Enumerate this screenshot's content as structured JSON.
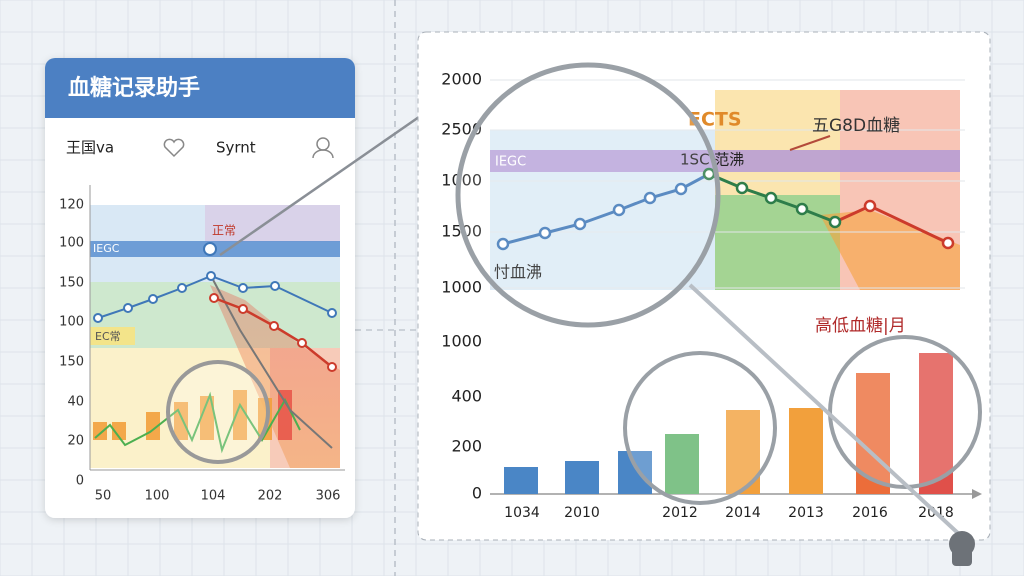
{
  "app_card": {
    "title": "血糖记录助手",
    "tabs": [
      "王国va",
      "Syrnt"
    ],
    "chart": {
      "y_labels": [
        "120",
        "100",
        "150",
        "100",
        "150",
        "40",
        "20",
        "0"
      ],
      "x_labels": [
        "50",
        "100",
        "104",
        "202",
        "306"
      ],
      "band_labels": [
        "正常",
        "IEGC",
        "EC常"
      ]
    }
  },
  "detail_panel": {
    "top_chart": {
      "y_labels": [
        "2000",
        "2500",
        "1000",
        "1500",
        "1000"
      ],
      "annotations": [
        "ECTS",
        "五G8D血糖",
        "IEGC",
        "1SC 范沸",
        "忖血沸"
      ]
    },
    "bottom_chart": {
      "title": "高低血糖|月",
      "y_labels": [
        "1000",
        "400",
        "200",
        "0"
      ],
      "x_labels": [
        "1034",
        "2010",
        "2012",
        "2014",
        "2013",
        "2016",
        "2018"
      ]
    }
  }
}
